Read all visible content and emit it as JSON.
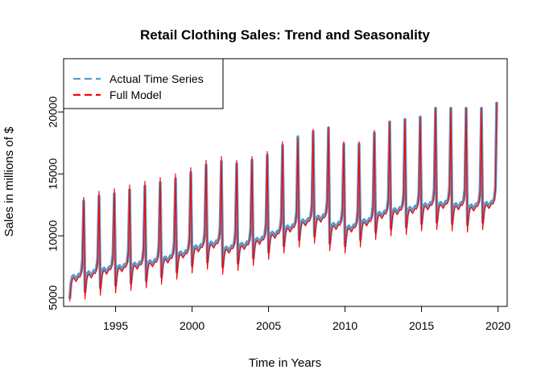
{
  "chart_data": {
    "type": "line",
    "title": "Retail Clothing Sales: Trend and Seasonality",
    "xlabel": "Time in Years",
    "ylabel": "Sales in millions of $",
    "xlim": [
      1991.6,
      2020.6
    ],
    "ylim": [
      4300,
      24300
    ],
    "x_ticks": [
      1995,
      2000,
      2005,
      2010,
      2015,
      2020
    ],
    "y_ticks": [
      5000,
      10000,
      15000,
      20000
    ],
    "grid": false,
    "legend_position": "top-left",
    "x_range": [
      1992.0,
      2019.917
    ],
    "frequency": "monthly",
    "series": [
      {
        "name": "Actual Time Series",
        "color": "#5b9bc8",
        "style": "dashed",
        "values": [
          4900,
          6200,
          6700,
          6800,
          6650,
          6500,
          6700,
          6900,
          6850,
          7100,
          8000,
          12800,
          5500,
          6500,
          7000,
          7100,
          6950,
          6800,
          7000,
          7200,
          7150,
          7400,
          8300,
          13200,
          5800,
          6800,
          7300,
          7400,
          7250,
          7100,
          7300,
          7500,
          7450,
          7700,
          8600,
          13400,
          6000,
          7000,
          7500,
          7600,
          7450,
          7300,
          7500,
          7700,
          7650,
          7900,
          8800,
          13700,
          6200,
          7200,
          7700,
          7800,
          7650,
          7500,
          7700,
          7900,
          7850,
          8100,
          9000,
          14000,
          6400,
          7400,
          7900,
          8000,
          7850,
          7700,
          7900,
          8100,
          8050,
          8300,
          9200,
          14300,
          6700,
          7700,
          8200,
          8300,
          8150,
          8000,
          8200,
          8400,
          8350,
          8600,
          9500,
          14600,
          7100,
          8100,
          8600,
          8700,
          8550,
          8400,
          8600,
          8800,
          8750,
          9000,
          9900,
          15100,
          7600,
          8600,
          9100,
          9200,
          9050,
          8900,
          9100,
          9300,
          9250,
          9500,
          10400,
          15700,
          7900,
          8900,
          9400,
          9500,
          9350,
          9200,
          9400,
          9600,
          9550,
          9800,
          10700,
          16000,
          7500,
          8500,
          9000,
          9100,
          8950,
          8800,
          9000,
          9200,
          9150,
          9400,
          10300,
          15800,
          7800,
          8800,
          9300,
          9400,
          9250,
          9100,
          9300,
          9500,
          9450,
          9700,
          10600,
          16100,
          8200,
          9200,
          9700,
          9800,
          9650,
          9500,
          9700,
          9900,
          9850,
          10100,
          11000,
          16500,
          8700,
          9700,
          10200,
          10300,
          10150,
          10000,
          10200,
          10400,
          10350,
          10600,
          11500,
          17300,
          9200,
          10200,
          10700,
          10800,
          10650,
          10500,
          10700,
          10900,
          10850,
          11100,
          12000,
          18000,
          9700,
          10700,
          11200,
          11300,
          11150,
          11000,
          11200,
          11400,
          11350,
          11600,
          12500,
          18400,
          10000,
          11000,
          11500,
          11600,
          11450,
          11300,
          11500,
          11700,
          11650,
          11900,
          12800,
          18700,
          9400,
          10400,
          10900,
          11000,
          10850,
          10700,
          10900,
          11100,
          11050,
          11300,
          12200,
          17400,
          9200,
          10200,
          10700,
          10800,
          10650,
          10500,
          10700,
          10900,
          10850,
          11100,
          12000,
          17400,
          9700,
          10700,
          11200,
          11300,
          11150,
          11000,
          11200,
          11400,
          11350,
          11600,
          12500,
          18300,
          10300,
          11300,
          11800,
          11900,
          11750,
          11600,
          11800,
          12000,
          11950,
          12200,
          13100,
          19200,
          10600,
          11600,
          12100,
          12200,
          12050,
          11900,
          12100,
          12300,
          12250,
          12500,
          13400,
          19400,
          10700,
          11700,
          12200,
          12300,
          12150,
          12000,
          12200,
          12400,
          12350,
          12600,
          13500,
          19600,
          11000,
          12000,
          12500,
          12600,
          12450,
          12300,
          12500,
          12700,
          12650,
          12900,
          13800,
          20300,
          11100,
          12100,
          12600,
          12700,
          12550,
          12400,
          12600,
          12800,
          12750,
          13000,
          13900,
          20300,
          11000,
          12000,
          12500,
          12600,
          12450,
          12300,
          12500,
          12700,
          12650,
          12900,
          13800,
          20300,
          10900,
          11900,
          12400,
          12500,
          12350,
          12200,
          12400,
          12600,
          12550,
          12800,
          13700,
          20300,
          11100,
          12100,
          12600,
          12700,
          12550,
          12400,
          12600,
          12800,
          12750,
          13000,
          13900,
          20800
        ]
      },
      {
        "name": "Full Model",
        "color": "#ff0000",
        "style": "solid",
        "values": [
          4700,
          6000,
          6500,
          6600,
          6450,
          6300,
          6500,
          6700,
          6650,
          6900,
          7800,
          13100,
          4900,
          6300,
          6800,
          6900,
          6750,
          6600,
          6800,
          7000,
          6950,
          7200,
          8100,
          13600,
          5200,
          6600,
          7100,
          7200,
          7050,
          6900,
          7100,
          7300,
          7250,
          7500,
          8400,
          13800,
          5400,
          6800,
          7300,
          7400,
          7250,
          7100,
          7300,
          7500,
          7450,
          7700,
          8600,
          14100,
          5600,
          7000,
          7500,
          7600,
          7450,
          7300,
          7500,
          7700,
          7650,
          7900,
          8800,
          14400,
          5800,
          7200,
          7700,
          7800,
          7650,
          7500,
          7700,
          7900,
          7850,
          8100,
          9000,
          14700,
          6100,
          7500,
          8000,
          8100,
          7950,
          7800,
          8000,
          8200,
          8150,
          8400,
          9300,
          15000,
          6500,
          7900,
          8400,
          8500,
          8350,
          8200,
          8400,
          8600,
          8550,
          8800,
          9700,
          15500,
          7000,
          8400,
          8900,
          9000,
          8850,
          8700,
          8900,
          9100,
          9050,
          9300,
          10200,
          16100,
          7300,
          8700,
          9200,
          9300,
          9150,
          9000,
          9200,
          9400,
          9350,
          9600,
          10500,
          16400,
          6900,
          8300,
          8800,
          8900,
          8750,
          8600,
          8800,
          9000,
          8950,
          9200,
          10100,
          16100,
          7200,
          8600,
          9100,
          9200,
          9050,
          8900,
          9100,
          9300,
          9250,
          9500,
          10400,
          16400,
          7600,
          9000,
          9500,
          9600,
          9450,
          9300,
          9500,
          9700,
          9650,
          9900,
          10800,
          16800,
          8100,
          9500,
          10000,
          10100,
          9950,
          9800,
          10000,
          10200,
          10150,
          10400,
          11300,
          17600,
          8600,
          10000,
          10500,
          10600,
          10450,
          10300,
          10500,
          10700,
          10650,
          10900,
          11800,
          17900,
          9100,
          10500,
          11000,
          11100,
          10950,
          10800,
          11000,
          11200,
          11150,
          11400,
          12300,
          18600,
          9400,
          10800,
          11300,
          11400,
          11250,
          11100,
          11300,
          11500,
          11450,
          11700,
          12600,
          18800,
          8800,
          10200,
          10700,
          10800,
          10650,
          10500,
          10700,
          10900,
          10850,
          11100,
          12000,
          17600,
          8600,
          10000,
          10500,
          10600,
          10450,
          10300,
          10500,
          10700,
          10650,
          10900,
          11800,
          17600,
          9100,
          10500,
          11000,
          11100,
          10950,
          10800,
          11000,
          11200,
          11150,
          11400,
          12300,
          18500,
          9700,
          11100,
          11600,
          11700,
          11550,
          11400,
          11600,
          11800,
          11750,
          12000,
          12900,
          19200,
          10000,
          11400,
          11900,
          12000,
          11850,
          11700,
          11900,
          12100,
          12050,
          12300,
          13200,
          19400,
          10100,
          11500,
          12000,
          12100,
          11950,
          11800,
          12000,
          12200,
          12150,
          12400,
          13300,
          19600,
          10400,
          11800,
          12300,
          12400,
          12250,
          12100,
          12300,
          12500,
          12450,
          12700,
          13600,
          20300,
          10500,
          11900,
          12400,
          12500,
          12350,
          12200,
          12400,
          12600,
          12550,
          12800,
          13700,
          20300,
          10400,
          11800,
          12300,
          12400,
          12250,
          12100,
          12300,
          12500,
          12450,
          12700,
          13600,
          20300,
          10300,
          11700,
          12200,
          12300,
          12150,
          12000,
          12200,
          12400,
          12350,
          12600,
          13500,
          20300,
          10500,
          11900,
          12400,
          12500,
          12350,
          12200,
          12400,
          12600,
          12550,
          12800,
          13700,
          20800
        ]
      }
    ]
  }
}
